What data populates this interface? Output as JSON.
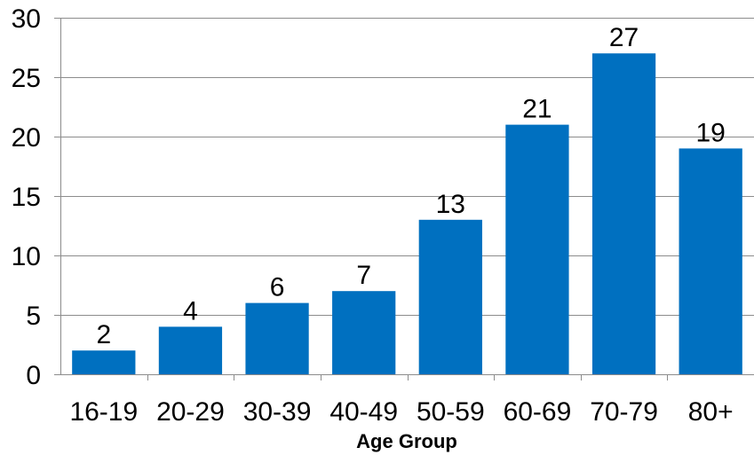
{
  "chart_data": {
    "type": "bar",
    "title": "",
    "xlabel": "Age Group",
    "ylabel": "",
    "categories": [
      "16-19",
      "20-29",
      "30-39",
      "40-49",
      "50-59",
      "60-69",
      "70-79",
      "80+"
    ],
    "values": [
      2,
      4,
      6,
      7,
      13,
      21,
      27,
      19
    ],
    "data_labels": [
      "2",
      "4",
      "6",
      "7",
      "13",
      "21",
      "27",
      "19"
    ],
    "ylim": [
      0,
      30
    ],
    "yticks": [
      0,
      5,
      10,
      15,
      20,
      25,
      30
    ],
    "ytick_labels": [
      "0",
      "5",
      "10",
      "15",
      "20",
      "25",
      "30"
    ],
    "grid": true,
    "legend": "none",
    "bar_color": "#0070C0"
  }
}
